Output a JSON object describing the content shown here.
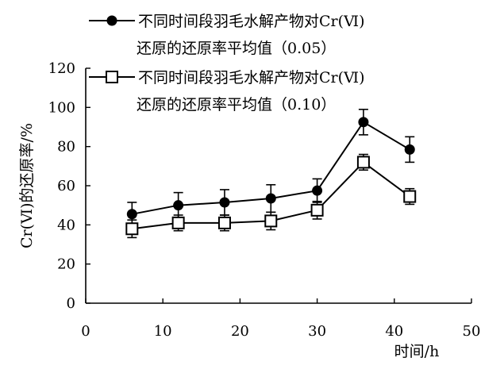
{
  "chart_data": {
    "type": "line",
    "xlabel": "时间/h",
    "ylabel": "Cr(Ⅵ)的还原率/%",
    "xlim": [
      0,
      50
    ],
    "ylim": [
      0,
      120
    ],
    "x_ticks": [
      0,
      10,
      20,
      30,
      40,
      50
    ],
    "y_ticks": [
      0,
      20,
      40,
      60,
      80,
      100,
      120
    ],
    "grid": false,
    "legend_position": "top",
    "series": [
      {
        "name": "不同时间段羽毛水解产物对Cr(Ⅵ)还原的还原率平均值（0.05）",
        "name_lines": [
          "不同时间段羽毛水解产物对Cr(Ⅵ)",
          "还原的还原率平均值（0.05）"
        ],
        "marker": "filled-circle",
        "color": "#000000",
        "x": [
          6,
          12,
          18,
          24,
          30,
          36,
          42
        ],
        "y": [
          45.5,
          50,
          51.5,
          53.5,
          57.5,
          92.5,
          78.5
        ],
        "error": [
          6,
          6.5,
          6.5,
          7,
          6,
          6.5,
          6.5
        ]
      },
      {
        "name": "不同时间段羽毛水解产物对Cr(Ⅵ)还原的还原率平均值（0.10）",
        "name_lines": [
          "不同时间段羽毛水解产物对Cr(Ⅵ)",
          "还原的还原率平均值（0.10）"
        ],
        "marker": "open-square",
        "color": "#000000",
        "x": [
          6,
          12,
          18,
          24,
          30,
          36,
          42
        ],
        "y": [
          38,
          41,
          41,
          42,
          47.5,
          72,
          54.5
        ],
        "error": [
          4.5,
          4,
          4,
          4.5,
          4.5,
          4,
          4
        ]
      }
    ]
  }
}
